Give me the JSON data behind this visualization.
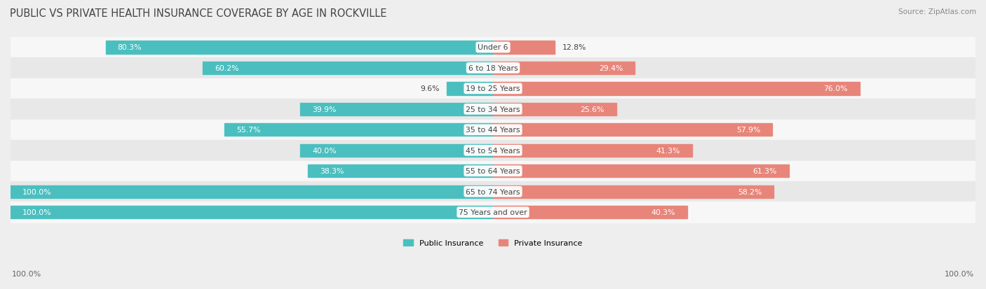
{
  "title": "PUBLIC VS PRIVATE HEALTH INSURANCE COVERAGE BY AGE IN ROCKVILLE",
  "source": "Source: ZipAtlas.com",
  "categories": [
    "Under 6",
    "6 to 18 Years",
    "19 to 25 Years",
    "25 to 34 Years",
    "35 to 44 Years",
    "45 to 54 Years",
    "55 to 64 Years",
    "65 to 74 Years",
    "75 Years and over"
  ],
  "public_values": [
    80.3,
    60.2,
    9.6,
    39.9,
    55.7,
    40.0,
    38.3,
    100.0,
    100.0
  ],
  "private_values": [
    12.8,
    29.4,
    76.0,
    25.6,
    57.9,
    41.3,
    61.3,
    58.2,
    40.3
  ],
  "public_color": "#4BBFBF",
  "private_color": "#E8857A",
  "public_label": "Public Insurance",
  "private_label": "Private Insurance",
  "bg_color": "#eeeeee",
  "row_bg_even": "#f7f7f7",
  "row_bg_odd": "#e8e8e8",
  "axis_label_left": "100.0%",
  "axis_label_right": "100.0%",
  "max_val": 100.0,
  "title_fontsize": 10.5,
  "source_fontsize": 7.5,
  "label_fontsize": 8.0,
  "bar_label_fontsize": 7.8,
  "category_fontsize": 7.8
}
